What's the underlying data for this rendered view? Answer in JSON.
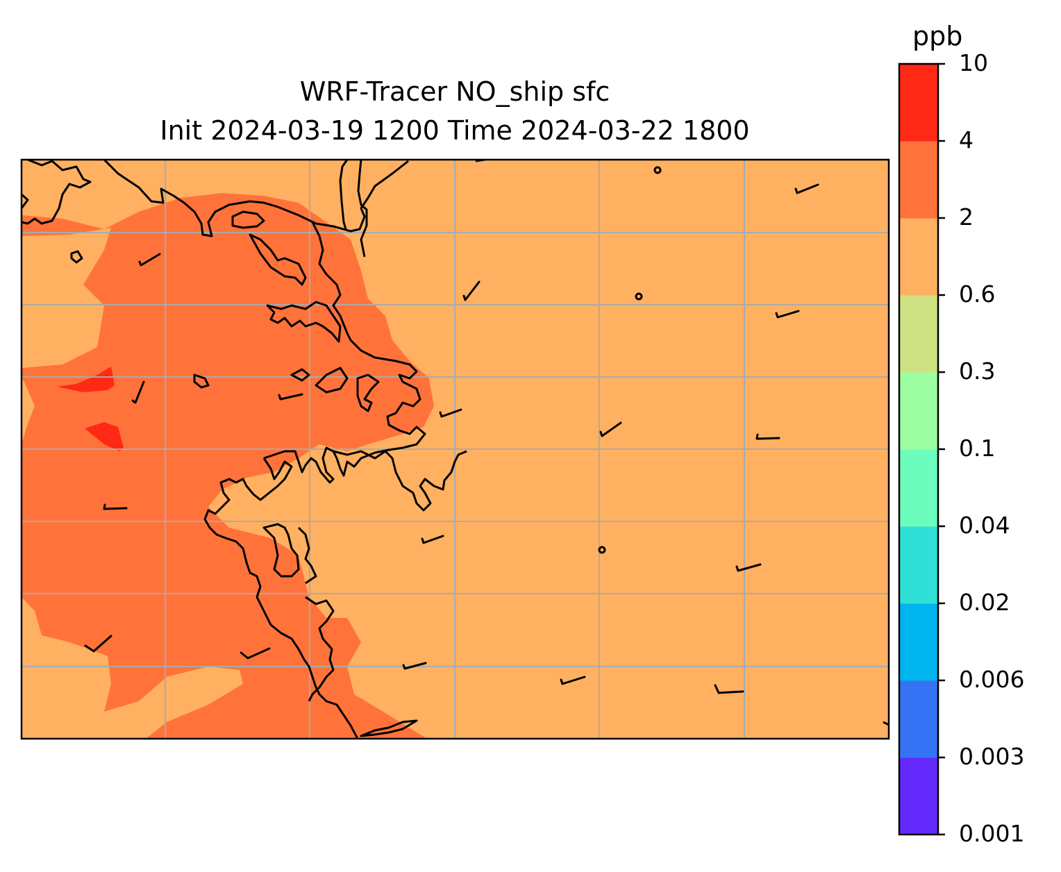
{
  "title": {
    "line1": "WRF-Tracer NO_ship sfc",
    "line2": "Init 2024-03-19 1200 Time 2024-03-22 1800"
  },
  "colorbar": {
    "unit": "ppb",
    "ticks": [
      "0.001",
      "0.003",
      "0.006",
      "0.02",
      "0.04",
      "0.1",
      "0.3",
      "0.6",
      "2",
      "4",
      "10"
    ],
    "colors": [
      "#6429fb",
      "#3573f4",
      "#00b4ed",
      "#30e0d7",
      "#6cfcbe",
      "#9cfea0",
      "#cfe283",
      "#ffb161",
      "#ff733b",
      "#ff2915"
    ]
  },
  "map": {
    "field_colors": {
      "low": "#ffb161",
      "mid": "#ff733b",
      "high": "#ff2915"
    },
    "gridline_color": "#aaaaaa"
  }
}
